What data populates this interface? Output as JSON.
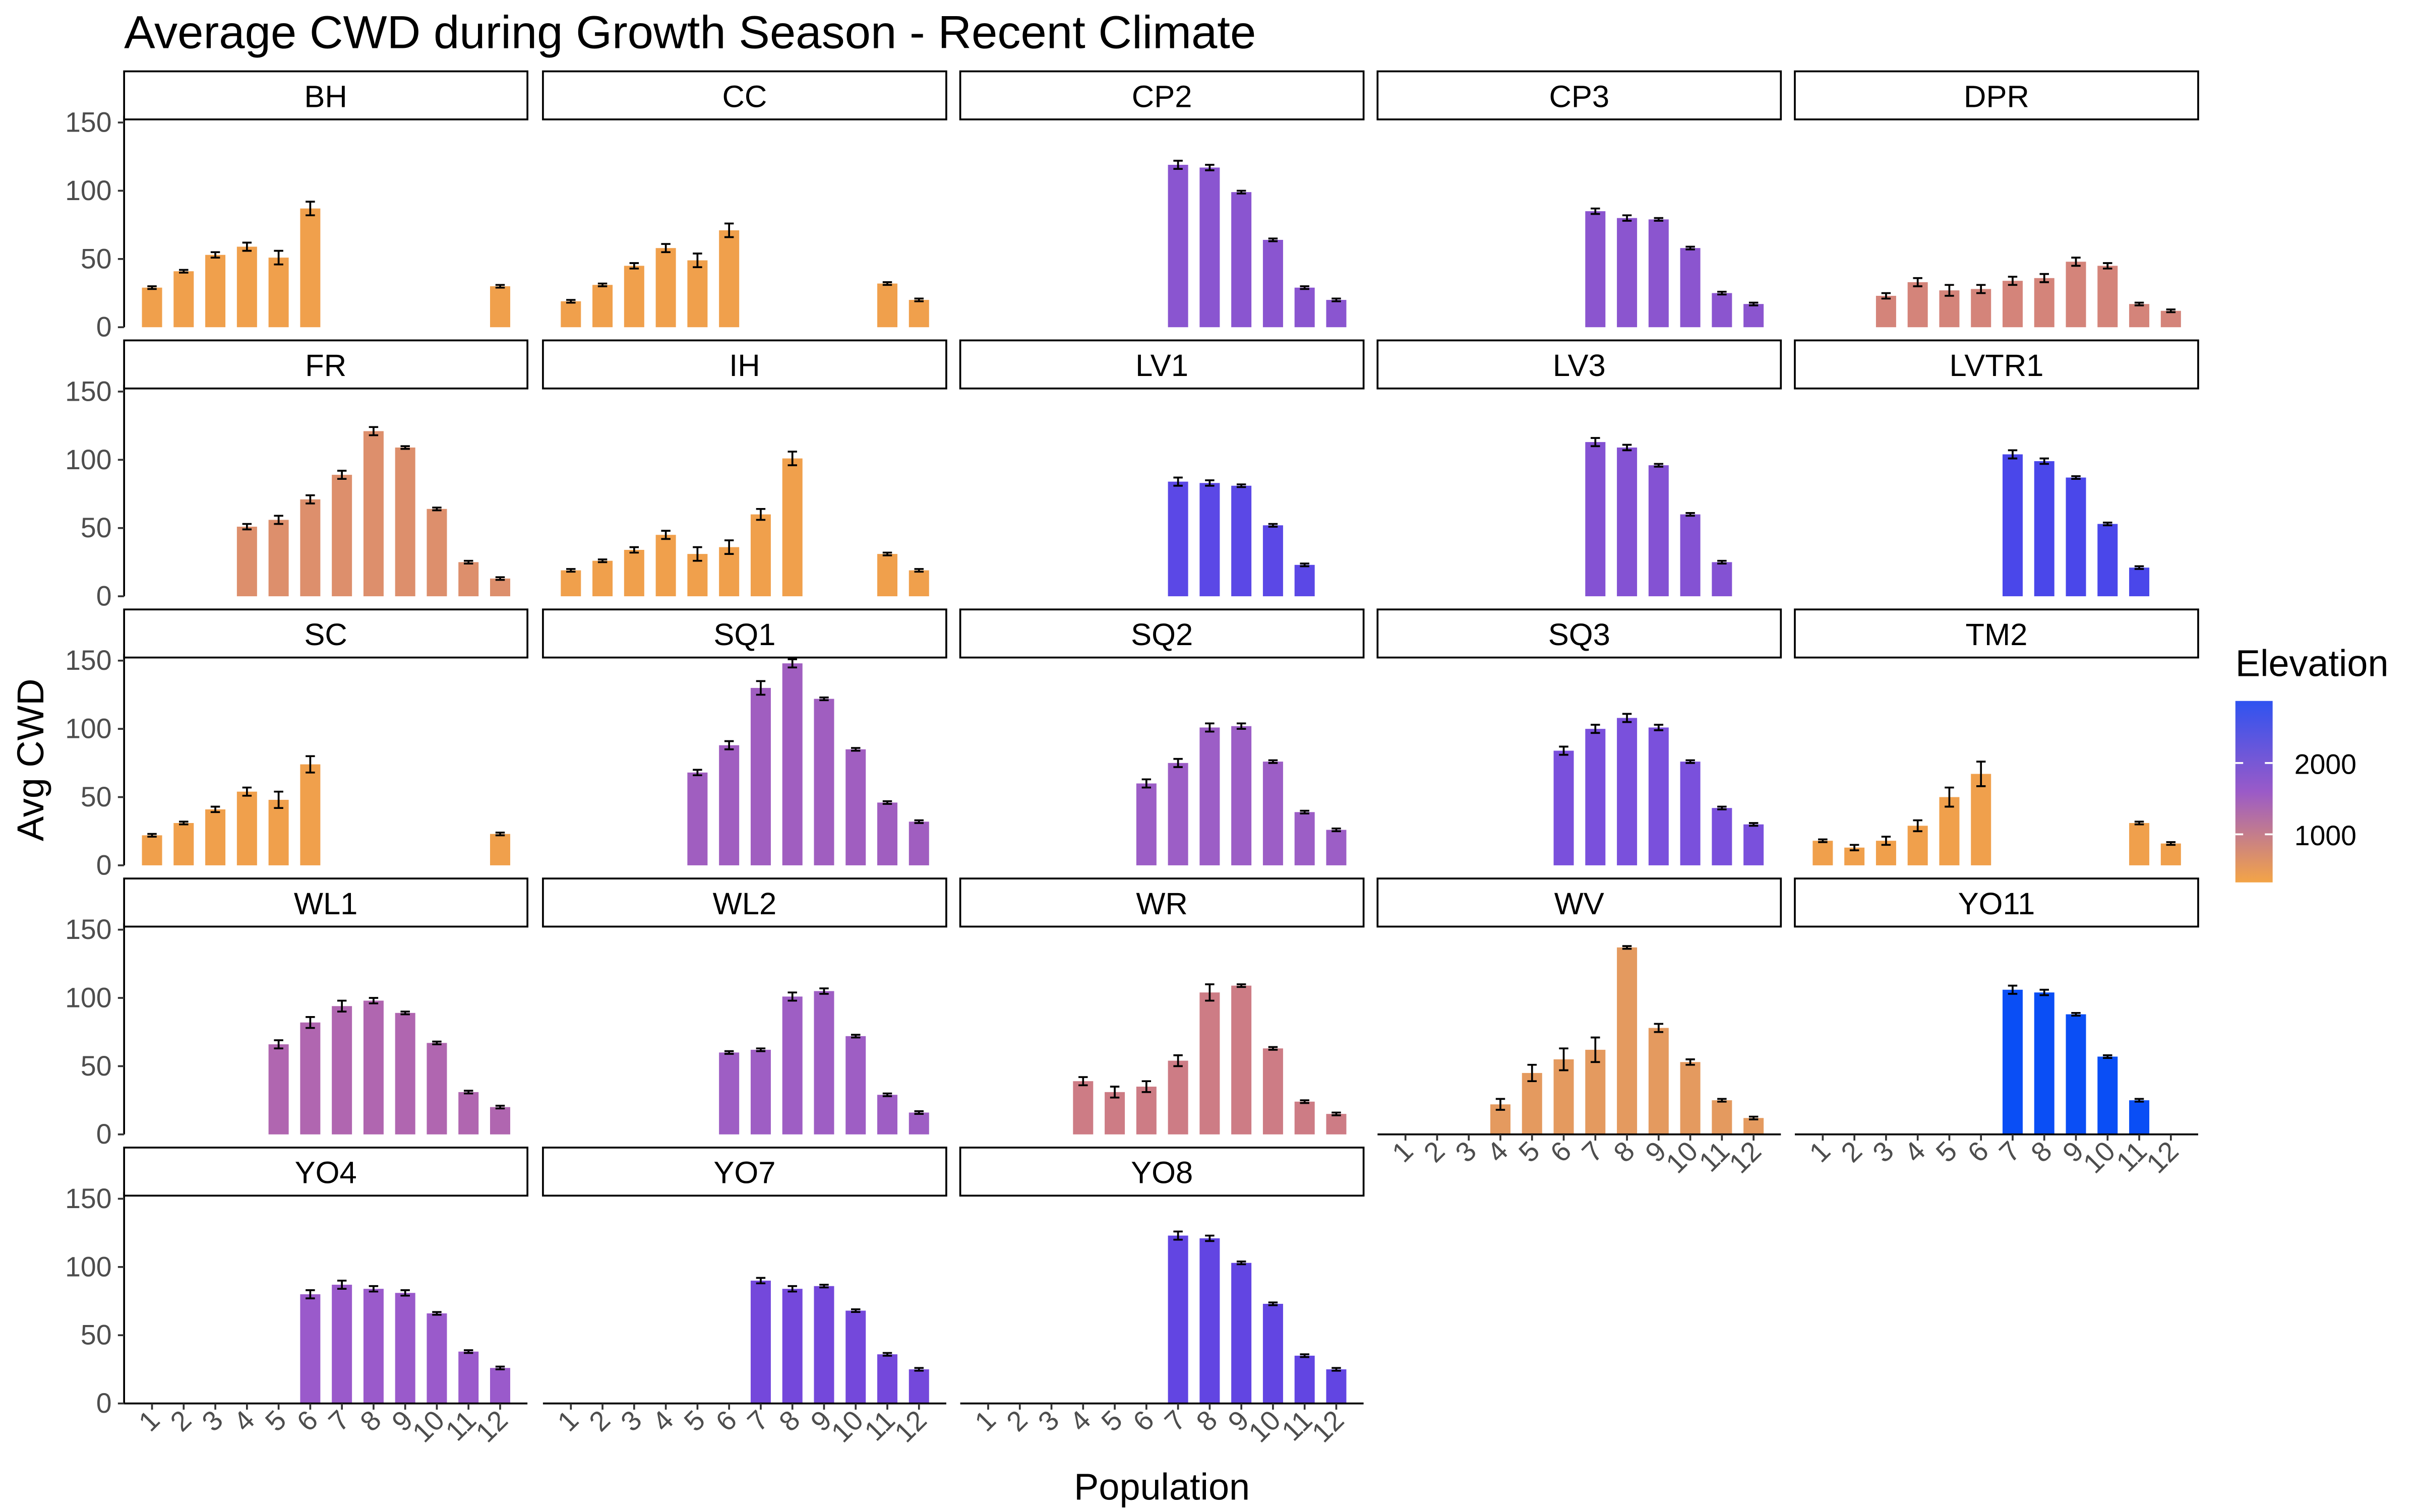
{
  "chart_data": {
    "type": "bar",
    "title": "Average CWD during Growth Season - Recent Climate",
    "x_label": "Population",
    "y_label": "Avg CWD",
    "categories": [
      "1",
      "2",
      "3",
      "4",
      "5",
      "6",
      "7",
      "8",
      "9",
      "10",
      "11",
      "12"
    ],
    "ylim": [
      0,
      155
    ],
    "yticks": [
      0,
      50,
      100,
      150
    ],
    "legend": {
      "title": "Elevation",
      "lim": [
        326,
        2870
      ],
      "ticks": [
        1000,
        2000
      ],
      "colors": [
        "#2f53f0",
        "#9a5ac8",
        "#f3a447"
      ]
    },
    "panels": [
      {
        "name": "BH",
        "color": "#f0a04c",
        "values": [
          29,
          41,
          53,
          59,
          51,
          87,
          null,
          null,
          null,
          null,
          null,
          30
        ],
        "errors": [
          1,
          1,
          2,
          3,
          5,
          5,
          null,
          null,
          null,
          null,
          null,
          1
        ]
      },
      {
        "name": "CC",
        "color": "#f0a04c",
        "values": [
          19,
          31,
          45,
          58,
          49,
          71,
          null,
          null,
          null,
          null,
          32,
          20
        ],
        "errors": [
          1,
          1,
          2,
          3,
          5,
          5,
          null,
          null,
          null,
          null,
          1,
          1
        ]
      },
      {
        "name": "CP2",
        "color": "#8a55d0",
        "values": [
          null,
          null,
          null,
          null,
          null,
          null,
          119,
          117,
          99,
          64,
          29,
          20
        ],
        "errors": [
          null,
          null,
          null,
          null,
          null,
          null,
          3,
          2,
          1,
          1,
          1,
          1
        ]
      },
      {
        "name": "CP3",
        "color": "#8b55cf",
        "values": [
          null,
          null,
          null,
          null,
          null,
          null,
          85,
          80,
          79,
          58,
          25,
          17
        ],
        "errors": [
          null,
          null,
          null,
          null,
          null,
          null,
          2,
          2,
          1,
          1,
          1,
          1
        ]
      },
      {
        "name": "DPR",
        "color": "#d4847a",
        "values": [
          null,
          null,
          23,
          33,
          27,
          28,
          34,
          36,
          48,
          45,
          17,
          12
        ],
        "errors": [
          null,
          null,
          2,
          3,
          4,
          3,
          3,
          3,
          3,
          2,
          1,
          1
        ]
      },
      {
        "name": "FR",
        "color": "#dd8f6c",
        "values": [
          null,
          null,
          null,
          51,
          56,
          71,
          89,
          121,
          109,
          64,
          25,
          13
        ],
        "errors": [
          null,
          null,
          null,
          2,
          3,
          3,
          3,
          3,
          1,
          1,
          1,
          1
        ]
      },
      {
        "name": "IH",
        "color": "#f0a04c",
        "values": [
          19,
          26,
          34,
          45,
          31,
          36,
          60,
          101,
          null,
          null,
          31,
          19
        ],
        "errors": [
          1,
          1,
          2,
          3,
          5,
          5,
          4,
          5,
          null,
          null,
          1,
          1
        ]
      },
      {
        "name": "LV1",
        "color": "#5b48e6",
        "values": [
          null,
          null,
          null,
          null,
          null,
          null,
          84,
          83,
          81,
          52,
          23,
          null
        ],
        "errors": [
          null,
          null,
          null,
          null,
          null,
          null,
          3,
          2,
          1,
          1,
          1,
          null
        ]
      },
      {
        "name": "LV3",
        "color": "#8452d3",
        "values": [
          null,
          null,
          null,
          null,
          null,
          null,
          113,
          109,
          96,
          60,
          25,
          null
        ],
        "errors": [
          null,
          null,
          null,
          null,
          null,
          null,
          3,
          2,
          1,
          1,
          1,
          null
        ]
      },
      {
        "name": "LVTR1",
        "color": "#4a47ea",
        "values": [
          null,
          null,
          null,
          null,
          null,
          null,
          104,
          99,
          87,
          53,
          21,
          null
        ],
        "errors": [
          null,
          null,
          null,
          null,
          null,
          null,
          3,
          2,
          1,
          1,
          1,
          null
        ]
      },
      {
        "name": "SC",
        "color": "#f0a04c",
        "values": [
          22,
          31,
          41,
          54,
          48,
          74,
          null,
          null,
          null,
          null,
          null,
          23
        ],
        "errors": [
          1,
          1,
          2,
          3,
          6,
          6,
          null,
          null,
          null,
          null,
          null,
          1
        ]
      },
      {
        "name": "SQ1",
        "color": "#a05ec0",
        "values": [
          null,
          null,
          null,
          null,
          68,
          88,
          130,
          148,
          122,
          85,
          46,
          32
        ],
        "errors": [
          null,
          null,
          null,
          null,
          2,
          3,
          5,
          3,
          1,
          1,
          1,
          1
        ]
      },
      {
        "name": "SQ2",
        "color": "#9c5ec6",
        "values": [
          null,
          null,
          null,
          null,
          null,
          60,
          75,
          101,
          102,
          76,
          39,
          26
        ],
        "errors": [
          null,
          null,
          null,
          null,
          null,
          3,
          3,
          3,
          2,
          1,
          1,
          1
        ]
      },
      {
        "name": "SQ3",
        "color": "#7a50dc",
        "values": [
          null,
          null,
          null,
          null,
          null,
          84,
          100,
          108,
          101,
          76,
          42,
          30
        ],
        "errors": [
          null,
          null,
          null,
          null,
          null,
          3,
          3,
          3,
          2,
          1,
          1,
          1
        ]
      },
      {
        "name": "TM2",
        "color": "#f0a04c",
        "values": [
          18,
          13,
          18,
          29,
          50,
          67,
          null,
          null,
          null,
          null,
          31,
          16
        ],
        "errors": [
          1,
          2,
          3,
          4,
          7,
          9,
          null,
          null,
          null,
          null,
          1,
          1
        ]
      },
      {
        "name": "WL1",
        "color": "#b066b0",
        "values": [
          null,
          null,
          null,
          null,
          66,
          82,
          94,
          98,
          89,
          67,
          31,
          20
        ],
        "errors": [
          null,
          null,
          null,
          null,
          3,
          4,
          4,
          2,
          1,
          1,
          1,
          1
        ]
      },
      {
        "name": "WL2",
        "color": "#9e5ec4",
        "values": [
          null,
          null,
          null,
          null,
          null,
          60,
          62,
          101,
          105,
          72,
          29,
          16
        ],
        "errors": [
          null,
          null,
          null,
          null,
          null,
          1,
          1,
          3,
          2,
          1,
          1,
          1
        ]
      },
      {
        "name": "WR",
        "color": "#cd7c85",
        "values": [
          null,
          null,
          null,
          39,
          31,
          35,
          54,
          104,
          109,
          63,
          24,
          15
        ],
        "errors": [
          null,
          null,
          null,
          3,
          4,
          4,
          4,
          6,
          1,
          1,
          1,
          1
        ]
      },
      {
        "name": "WV",
        "color": "#e49a5f",
        "values": [
          null,
          null,
          null,
          22,
          45,
          55,
          62,
          137,
          78,
          53,
          25,
          12
        ],
        "errors": [
          null,
          null,
          null,
          4,
          6,
          8,
          9,
          1,
          3,
          2,
          1,
          1
        ]
      },
      {
        "name": "YO11",
        "color": "#0a4ef5",
        "values": [
          null,
          null,
          null,
          null,
          null,
          null,
          106,
          104,
          88,
          57,
          25,
          null
        ],
        "errors": [
          null,
          null,
          null,
          null,
          null,
          null,
          3,
          2,
          1,
          1,
          1,
          null
        ]
      },
      {
        "name": "YO4",
        "color": "#9a5acb",
        "values": [
          null,
          null,
          null,
          null,
          null,
          80,
          87,
          84,
          81,
          66,
          38,
          26
        ],
        "errors": [
          null,
          null,
          null,
          null,
          null,
          3,
          3,
          2,
          2,
          1,
          1,
          1
        ]
      },
      {
        "name": "YO7",
        "color": "#7448db",
        "values": [
          null,
          null,
          null,
          null,
          null,
          null,
          90,
          84,
          86,
          68,
          36,
          25
        ],
        "errors": [
          null,
          null,
          null,
          null,
          null,
          null,
          2,
          2,
          1,
          1,
          1,
          1
        ]
      },
      {
        "name": "YO8",
        "color": "#6245e2",
        "values": [
          null,
          null,
          null,
          null,
          null,
          null,
          123,
          121,
          103,
          73,
          35,
          25
        ],
        "errors": [
          null,
          null,
          null,
          null,
          null,
          null,
          3,
          2,
          1,
          1,
          1,
          1
        ]
      }
    ]
  }
}
